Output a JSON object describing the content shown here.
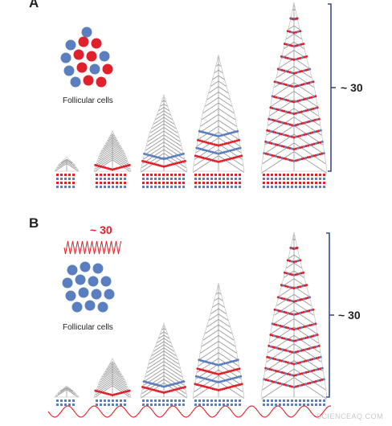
{
  "panel_a": {
    "label": "A",
    "cluster_caption": "Follicular cells",
    "bracket_label": "~ 30",
    "cluster_colors": [
      "blue",
      "red",
      "red",
      "blue",
      "red",
      "red",
      "blue",
      "blue",
      "red",
      "blue",
      "red",
      "blue",
      "red",
      "red",
      "blue"
    ]
  },
  "panel_b": {
    "label": "B",
    "cluster_caption": "Follicular cells",
    "bracket_label": "~ 30",
    "wave_label": "~ 30"
  },
  "colors": {
    "blue": "#5b7fbe",
    "red": "#e0202a",
    "grey": "#9a9a9a",
    "bracket": "#3a4c8a"
  },
  "watermark": "SCIENCEAQ.COM"
}
